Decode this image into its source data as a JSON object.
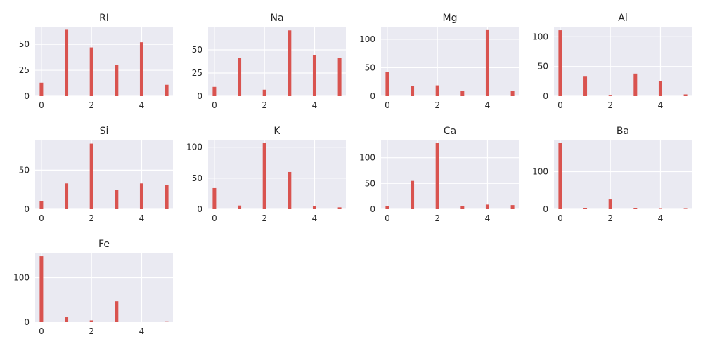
{
  "chart_data": [
    {
      "type": "bar",
      "title": "RI",
      "x": [
        0,
        1,
        2,
        3,
        4,
        5
      ],
      "values": [
        13,
        64,
        47,
        30,
        52,
        11
      ],
      "xlim": [
        -0.25,
        5.25
      ],
      "ylim": [
        0,
        67
      ],
      "xticks": [
        0,
        2,
        4
      ],
      "yticks": [
        0,
        25,
        50
      ],
      "color": "#d9534f",
      "grid": true
    },
    {
      "type": "bar",
      "title": "Na",
      "x": [
        0,
        1,
        2,
        3,
        4,
        5
      ],
      "values": [
        10,
        41,
        7,
        71,
        44,
        41
      ],
      "xlim": [
        -0.25,
        5.25
      ],
      "ylim": [
        0,
        75
      ],
      "xticks": [
        0,
        2,
        4
      ],
      "yticks": [
        0,
        25,
        50
      ],
      "color": "#d9534f",
      "grid": true
    },
    {
      "type": "bar",
      "title": "Mg",
      "x": [
        0,
        1,
        2,
        3,
        4,
        5
      ],
      "values": [
        42,
        18,
        19,
        9,
        116,
        9
      ],
      "xlim": [
        -0.25,
        5.25
      ],
      "ylim": [
        0,
        122
      ],
      "xticks": [
        0,
        2,
        4
      ],
      "yticks": [
        0,
        50,
        100
      ],
      "color": "#d9534f",
      "grid": true
    },
    {
      "type": "bar",
      "title": "Al",
      "x": [
        0,
        1,
        2,
        3,
        4,
        5
      ],
      "values": [
        111,
        34,
        1,
        38,
        26,
        3
      ],
      "xlim": [
        -0.25,
        5.25
      ],
      "ylim": [
        0,
        117
      ],
      "xticks": [
        0,
        2,
        4
      ],
      "yticks": [
        0,
        50,
        100
      ],
      "color": "#d9534f",
      "grid": true
    },
    {
      "type": "bar",
      "title": "Si",
      "x": [
        0,
        1,
        2,
        3,
        4,
        5
      ],
      "values": [
        10,
        33,
        84,
        25,
        33,
        31
      ],
      "xlim": [
        -0.25,
        5.25
      ],
      "ylim": [
        0,
        89
      ],
      "xticks": [
        0,
        2,
        4
      ],
      "yticks": [
        0,
        50
      ],
      "color": "#d9534f",
      "grid": true
    },
    {
      "type": "bar",
      "title": "K",
      "x": [
        0,
        1,
        2,
        3,
        4,
        5
      ],
      "values": [
        34,
        6,
        107,
        60,
        5,
        3
      ],
      "xlim": [
        -0.25,
        5.25
      ],
      "ylim": [
        0,
        112
      ],
      "xticks": [
        0,
        2,
        4
      ],
      "yticks": [
        0,
        50,
        100
      ],
      "color": "#d9534f",
      "grid": true
    },
    {
      "type": "bar",
      "title": "Ca",
      "x": [
        0,
        1,
        2,
        3,
        4,
        5
      ],
      "values": [
        6,
        55,
        129,
        6,
        9,
        8
      ],
      "xlim": [
        -0.25,
        5.25
      ],
      "ylim": [
        0,
        135
      ],
      "xticks": [
        0,
        2,
        4
      ],
      "yticks": [
        0,
        50,
        100
      ],
      "color": "#d9534f",
      "grid": true
    },
    {
      "type": "bar",
      "title": "Ba",
      "x": [
        0,
        1,
        2,
        3,
        4,
        5
      ],
      "values": [
        176,
        2,
        26,
        2,
        1,
        1
      ],
      "xlim": [
        -0.25,
        5.25
      ],
      "ylim": [
        0,
        185
      ],
      "xticks": [
        0,
        2,
        4
      ],
      "yticks": [
        0,
        100
      ],
      "color": "#d9534f",
      "grid": true
    },
    {
      "type": "bar",
      "title": "Fe",
      "x": [
        0,
        1,
        2,
        3,
        4,
        5
      ],
      "values": [
        148,
        11,
        4,
        47,
        0,
        2
      ],
      "xlim": [
        -0.25,
        5.25
      ],
      "ylim": [
        0,
        156
      ],
      "xticks": [
        0,
        2,
        4
      ],
      "yticks": [
        0,
        100
      ],
      "color": "#d9534f",
      "grid": true
    }
  ]
}
